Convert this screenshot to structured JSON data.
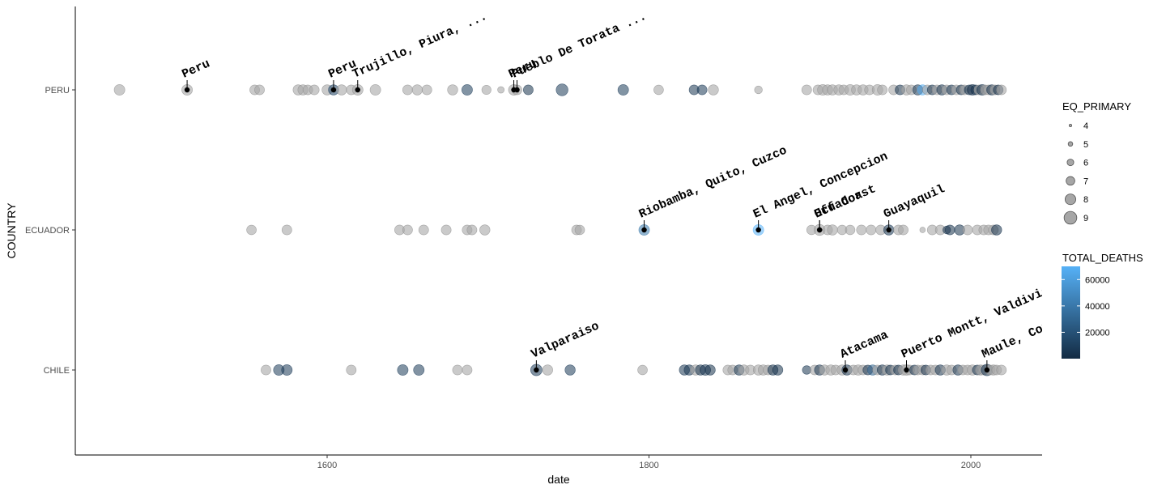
{
  "chart_data": {
    "type": "scatter",
    "xlabel": "date",
    "ylabel": "COUNTRY",
    "xlim": [
      1464,
      2022
    ],
    "x_ticks": [
      1600,
      1800,
      2000
    ],
    "categories": [
      "CHILE",
      "ECUADOR",
      "PERU"
    ],
    "size_legend": {
      "title": "EQ_PRIMARY",
      "values": [
        4,
        5,
        6,
        7,
        8,
        9
      ]
    },
    "color_legend": {
      "title": "TOTAL_DEATHS",
      "ticks": [
        20000,
        40000,
        60000
      ],
      "low_color": "#132B43",
      "high_color": "#56B1F7",
      "range": [
        0,
        70000
      ]
    },
    "grey_point_color": "#a6a6a6",
    "points": {
      "PERU": [
        {
          "x": 1471,
          "m": 8
        },
        {
          "x": 1513,
          "m": 8
        },
        {
          "x": 1555,
          "m": 7.6
        },
        {
          "x": 1558,
          "m": 7.6
        },
        {
          "x": 1582,
          "m": 7.8
        },
        {
          "x": 1585,
          "m": 7.8
        },
        {
          "x": 1588,
          "m": 7.6
        },
        {
          "x": 1592,
          "m": 7.6
        },
        {
          "x": 1600,
          "m": 7.8
        },
        {
          "x": 1604,
          "m": 7.8,
          "d": 12000
        },
        {
          "x": 1609,
          "m": 7.8
        },
        {
          "x": 1615,
          "m": 7.6
        },
        {
          "x": 1619,
          "m": 8
        },
        {
          "x": 1630,
          "m": 8
        },
        {
          "x": 1650,
          "m": 7.6
        },
        {
          "x": 1656,
          "m": 7.8
        },
        {
          "x": 1662,
          "m": 7.6
        },
        {
          "x": 1678,
          "m": 7.8
        },
        {
          "x": 1687,
          "m": 8,
          "d": 9000
        },
        {
          "x": 1699,
          "m": 7.3
        },
        {
          "x": 1708,
          "m": 6
        },
        {
          "x": 1716,
          "m": 8
        },
        {
          "x": 1718,
          "m": 7.6
        },
        {
          "x": 1725,
          "m": 7.6,
          "d": 4000
        },
        {
          "x": 1746,
          "m": 8.6,
          "d": 8000
        },
        {
          "x": 1784,
          "m": 8,
          "d": 9000
        },
        {
          "x": 1806,
          "m": 7.5
        },
        {
          "x": 1828,
          "m": 7.6,
          "d": 6000
        },
        {
          "x": 1833,
          "m": 7.6,
          "d": 7000
        },
        {
          "x": 1840,
          "m": 7.8
        },
        {
          "x": 1868,
          "m": 6.6
        },
        {
          "x": 1898,
          "m": 7.6
        },
        {
          "x": 1905,
          "m": 7.6
        },
        {
          "x": 1908,
          "m": 8
        },
        {
          "x": 1911,
          "m": 7.8
        },
        {
          "x": 1914,
          "m": 7.8
        },
        {
          "x": 1918,
          "m": 7.8
        },
        {
          "x": 1921,
          "m": 7.6
        },
        {
          "x": 1925,
          "m": 8
        },
        {
          "x": 1929,
          "m": 7.8
        },
        {
          "x": 1933,
          "m": 7.8
        },
        {
          "x": 1937,
          "m": 7.6
        },
        {
          "x": 1942,
          "m": 8
        },
        {
          "x": 1945,
          "m": 7.6
        },
        {
          "x": 1952,
          "m": 7.6
        },
        {
          "x": 1956,
          "m": 7.6,
          "d": 3000
        },
        {
          "x": 1960,
          "m": 7.8
        },
        {
          "x": 1963,
          "m": 7.6
        },
        {
          "x": 1967,
          "m": 7.8,
          "d": 5000
        },
        {
          "x": 1970,
          "m": 7.8,
          "d": 66000
        },
        {
          "x": 1973,
          "m": 7.6
        },
        {
          "x": 1976,
          "m": 7.6,
          "d": 4000
        },
        {
          "x": 1979,
          "m": 7.6
        },
        {
          "x": 1982,
          "m": 7.8,
          "d": 3000
        },
        {
          "x": 1985,
          "m": 7.6
        },
        {
          "x": 1988,
          "m": 7.6,
          "d": 5000
        },
        {
          "x": 1991,
          "m": 7.6
        },
        {
          "x": 1994,
          "m": 7.6,
          "d": 3000
        },
        {
          "x": 1996,
          "m": 7.6
        },
        {
          "x": 1999,
          "m": 7.6,
          "d": 4000
        },
        {
          "x": 2001,
          "m": 8,
          "d": 2000
        },
        {
          "x": 2003,
          "m": 7.6,
          "d": 3000
        },
        {
          "x": 2005,
          "m": 7.6
        },
        {
          "x": 2007,
          "m": 8,
          "d": 4000
        },
        {
          "x": 2009,
          "m": 7.6
        },
        {
          "x": 2011,
          "m": 7.6
        },
        {
          "x": 2013,
          "m": 7.8,
          "d": 3000
        },
        {
          "x": 2015,
          "m": 7.6
        },
        {
          "x": 2017,
          "m": 7.6,
          "d": 2000
        },
        {
          "x": 2019,
          "m": 7.6
        }
      ],
      "ECUADOR": [
        {
          "x": 1553,
          "m": 7.5
        },
        {
          "x": 1575,
          "m": 7.6
        },
        {
          "x": 1645,
          "m": 7.6
        },
        {
          "x": 1650,
          "m": 7.6
        },
        {
          "x": 1660,
          "m": 7.6
        },
        {
          "x": 1674,
          "m": 7.6
        },
        {
          "x": 1687,
          "m": 7.6
        },
        {
          "x": 1690,
          "m": 7.6
        },
        {
          "x": 1698,
          "m": 7.8
        },
        {
          "x": 1755,
          "m": 7.6
        },
        {
          "x": 1757,
          "m": 7.5
        },
        {
          "x": 1797,
          "m": 8,
          "d": 40000
        },
        {
          "x": 1868,
          "m": 8,
          "d": 70000
        },
        {
          "x": 1901,
          "m": 7.5
        },
        {
          "x": 1906,
          "m": 8.2
        },
        {
          "x": 1911,
          "m": 7.6
        },
        {
          "x": 1914,
          "m": 7.8
        },
        {
          "x": 1920,
          "m": 7.5
        },
        {
          "x": 1925,
          "m": 7.5
        },
        {
          "x": 1932,
          "m": 7.6
        },
        {
          "x": 1938,
          "m": 7.6
        },
        {
          "x": 1944,
          "m": 7.6
        },
        {
          "x": 1949,
          "m": 7.8,
          "d": 6000
        },
        {
          "x": 1955,
          "m": 7.6
        },
        {
          "x": 1958,
          "m": 7.6
        },
        {
          "x": 1970,
          "m": 5.5
        },
        {
          "x": 1976,
          "m": 7.6
        },
        {
          "x": 1981,
          "m": 7.6
        },
        {
          "x": 1985,
          "m": 6.6,
          "d": 4000
        },
        {
          "x": 1987,
          "m": 7.6,
          "d": 3000
        },
        {
          "x": 1993,
          "m": 7.8,
          "d": 4000
        },
        {
          "x": 1998,
          "m": 7.6
        },
        {
          "x": 2004,
          "m": 7.6
        },
        {
          "x": 2008,
          "m": 7.6
        },
        {
          "x": 2011,
          "m": 7.6
        },
        {
          "x": 2014,
          "m": 7.6
        },
        {
          "x": 2016,
          "m": 7.8,
          "d": 3000
        }
      ],
      "CHILE": [
        {
          "x": 1562,
          "m": 7.6
        },
        {
          "x": 1570,
          "m": 8,
          "d": 8000
        },
        {
          "x": 1575,
          "m": 8,
          "d": 7000
        },
        {
          "x": 1615,
          "m": 7.6
        },
        {
          "x": 1647,
          "m": 8,
          "d": 9000
        },
        {
          "x": 1657,
          "m": 8,
          "d": 8000
        },
        {
          "x": 1681,
          "m": 7.6
        },
        {
          "x": 1687,
          "m": 7.6
        },
        {
          "x": 1730,
          "m": 8.4,
          "d": 8000
        },
        {
          "x": 1737,
          "m": 7.8
        },
        {
          "x": 1751,
          "m": 7.8,
          "d": 8000
        },
        {
          "x": 1796,
          "m": 7.5
        },
        {
          "x": 1822,
          "m": 7.8,
          "d": 6000
        },
        {
          "x": 1825,
          "m": 7.8,
          "d": 5000
        },
        {
          "x": 1829,
          "m": 7.8
        },
        {
          "x": 1832,
          "m": 7.8,
          "d": 4000
        },
        {
          "x": 1835,
          "m": 8,
          "d": 5000
        },
        {
          "x": 1838,
          "m": 7.8,
          "d": 3000
        },
        {
          "x": 1849,
          "m": 7.6
        },
        {
          "x": 1852,
          "m": 7.6
        },
        {
          "x": 1856,
          "m": 7.8,
          "d": 4000
        },
        {
          "x": 1859,
          "m": 7.8
        },
        {
          "x": 1863,
          "m": 7.6
        },
        {
          "x": 1868,
          "m": 7.8
        },
        {
          "x": 1871,
          "m": 7.8
        },
        {
          "x": 1874,
          "m": 7.6
        },
        {
          "x": 1877,
          "m": 7.8,
          "d": 3000
        },
        {
          "x": 1880,
          "m": 7.8,
          "d": 4000
        },
        {
          "x": 1898,
          "m": 7,
          "d": 5000
        },
        {
          "x": 1903,
          "m": 7.6
        },
        {
          "x": 1906,
          "m": 7.8,
          "d": 3000
        },
        {
          "x": 1909,
          "m": 7.8
        },
        {
          "x": 1913,
          "m": 7.8
        },
        {
          "x": 1916,
          "m": 7.6
        },
        {
          "x": 1920,
          "m": 7.8
        },
        {
          "x": 1923,
          "m": 7.8,
          "d": 3000
        },
        {
          "x": 1927,
          "m": 7.6
        },
        {
          "x": 1930,
          "m": 7.8
        },
        {
          "x": 1933,
          "m": 7.6
        },
        {
          "x": 1936,
          "m": 7.6,
          "d": 2000
        },
        {
          "x": 1939,
          "m": 7.8,
          "d": 28000
        },
        {
          "x": 1942,
          "m": 7.6
        },
        {
          "x": 1945,
          "m": 7.8,
          "d": 3000
        },
        {
          "x": 1948,
          "m": 7.8
        },
        {
          "x": 1950,
          "m": 7.6,
          "d": 4000
        },
        {
          "x": 1953,
          "m": 7.6
        },
        {
          "x": 1955,
          "m": 7.6,
          "d": 3000
        },
        {
          "x": 1958,
          "m": 7.8
        },
        {
          "x": 1960,
          "m": 8
        },
        {
          "x": 1962,
          "m": 7.6
        },
        {
          "x": 1965,
          "m": 7.6,
          "d": 4000
        },
        {
          "x": 1967,
          "m": 7.6
        },
        {
          "x": 1970,
          "m": 7.6
        },
        {
          "x": 1972,
          "m": 7.6,
          "d": 2000
        },
        {
          "x": 1975,
          "m": 7.6
        },
        {
          "x": 1978,
          "m": 7.6
        },
        {
          "x": 1981,
          "m": 7.8,
          "d": 3000
        },
        {
          "x": 1985,
          "m": 7.8
        },
        {
          "x": 1988,
          "m": 7.6
        },
        {
          "x": 1992,
          "m": 7.8,
          "d": 3000
        },
        {
          "x": 1995,
          "m": 7.6
        },
        {
          "x": 1998,
          "m": 7.6
        },
        {
          "x": 2001,
          "m": 7.8
        },
        {
          "x": 2004,
          "m": 7.6,
          "d": 3000
        },
        {
          "x": 2006,
          "m": 7.8
        },
        {
          "x": 2008,
          "m": 7.6
        },
        {
          "x": 2010,
          "m": 8.4,
          "d": 5000
        },
        {
          "x": 2012,
          "m": 7.6
        },
        {
          "x": 2014,
          "m": 7.8
        },
        {
          "x": 2016,
          "m": 7.6
        },
        {
          "x": 2019,
          "m": 7.6
        }
      ]
    },
    "annotations": [
      {
        "country": "PERU",
        "x": 1513,
        "label": "Peru"
      },
      {
        "country": "PERU",
        "x": 1604,
        "label": "Peru"
      },
      {
        "country": "PERU",
        "x": 1619,
        "label": "Trujillo, Piura, ..."
      },
      {
        "country": "PERU",
        "x": 1716,
        "label": "Peru"
      },
      {
        "country": "PERU",
        "x": 1718,
        "label": "Pueblo De Torata ..."
      },
      {
        "country": "ECUADOR",
        "x": 1797,
        "label": "Riobamba, Quito, Cuzco"
      },
      {
        "country": "ECUADOR",
        "x": 1868,
        "label": "El Angel, Concepcion"
      },
      {
        "country": "ECUADOR",
        "x": 1906,
        "label": "Off Coast"
      },
      {
        "country": "ECUADOR",
        "x": 1906,
        "label": "Ecuador"
      },
      {
        "country": "ECUADOR",
        "x": 1949,
        "label": "Guayaquil"
      },
      {
        "country": "CHILE",
        "x": 1730,
        "label": "Valparaiso"
      },
      {
        "country": "CHILE",
        "x": 1922,
        "label": "Atacama"
      },
      {
        "country": "CHILE",
        "x": 1960,
        "label": "Puerto Montt, Valdivia"
      },
      {
        "country": "CHILE",
        "x": 2010,
        "label": "Maule, Concepcion"
      }
    ]
  }
}
